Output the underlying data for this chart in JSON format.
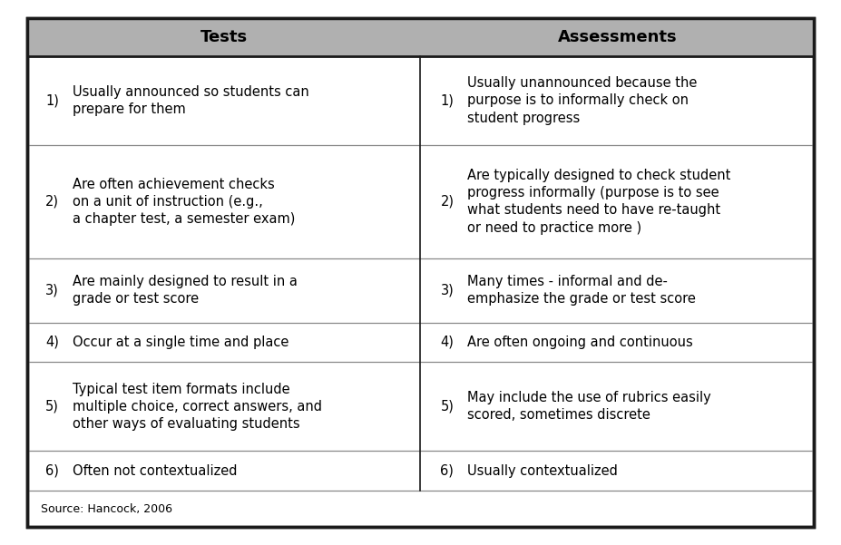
{
  "title_left": "Tests",
  "title_right": "Assessments",
  "header_bg": "#b0b0b0",
  "header_text_color": "#000000",
  "body_bg": "#ffffff",
  "outer_border_color": "#1a1a1a",
  "divider_color": "#888888",
  "source_text": "Source: Hancock, 2006",
  "rows": [
    {
      "left_num": "1)",
      "left": "Usually announced so students can\nprepare for them",
      "right_num": "1)",
      "right": "Usually unannounced because the\npurpose is to informally check on\nstudent progress"
    },
    {
      "left_num": "2)",
      "left": "Are often achievement checks\non a unit of instruction (e.g.,\na chapter test, a semester exam)",
      "right_num": "2)",
      "right": "Are typically designed to check student\nprogress informally (purpose is to see\nwhat students need to have re-taught\nor need to practice more )"
    },
    {
      "left_num": "3)",
      "left": "Are mainly designed to result in a\ngrade or test score",
      "right_num": "3)",
      "right": "Many times - informal and de-\nemphasize the grade or test score"
    },
    {
      "left_num": "4)",
      "left": "Occur at a single time and place",
      "right_num": "4)",
      "right": "Are often ongoing and continuous"
    },
    {
      "left_num": "5)",
      "left": "Typical test item formats include\nmultiple choice, correct answers, and\nother ways of evaluating students",
      "right_num": "5)",
      "right": "May include the use of rubrics easily\nscored, sometimes discrete"
    },
    {
      "left_num": "6)",
      "left": "Often not contextualized",
      "right_num": "6)",
      "right": "Usually contextualized"
    }
  ],
  "fig_width": 9.27,
  "fig_height": 6.01,
  "dpi": 100,
  "left_justify": true,
  "right_justify": false
}
